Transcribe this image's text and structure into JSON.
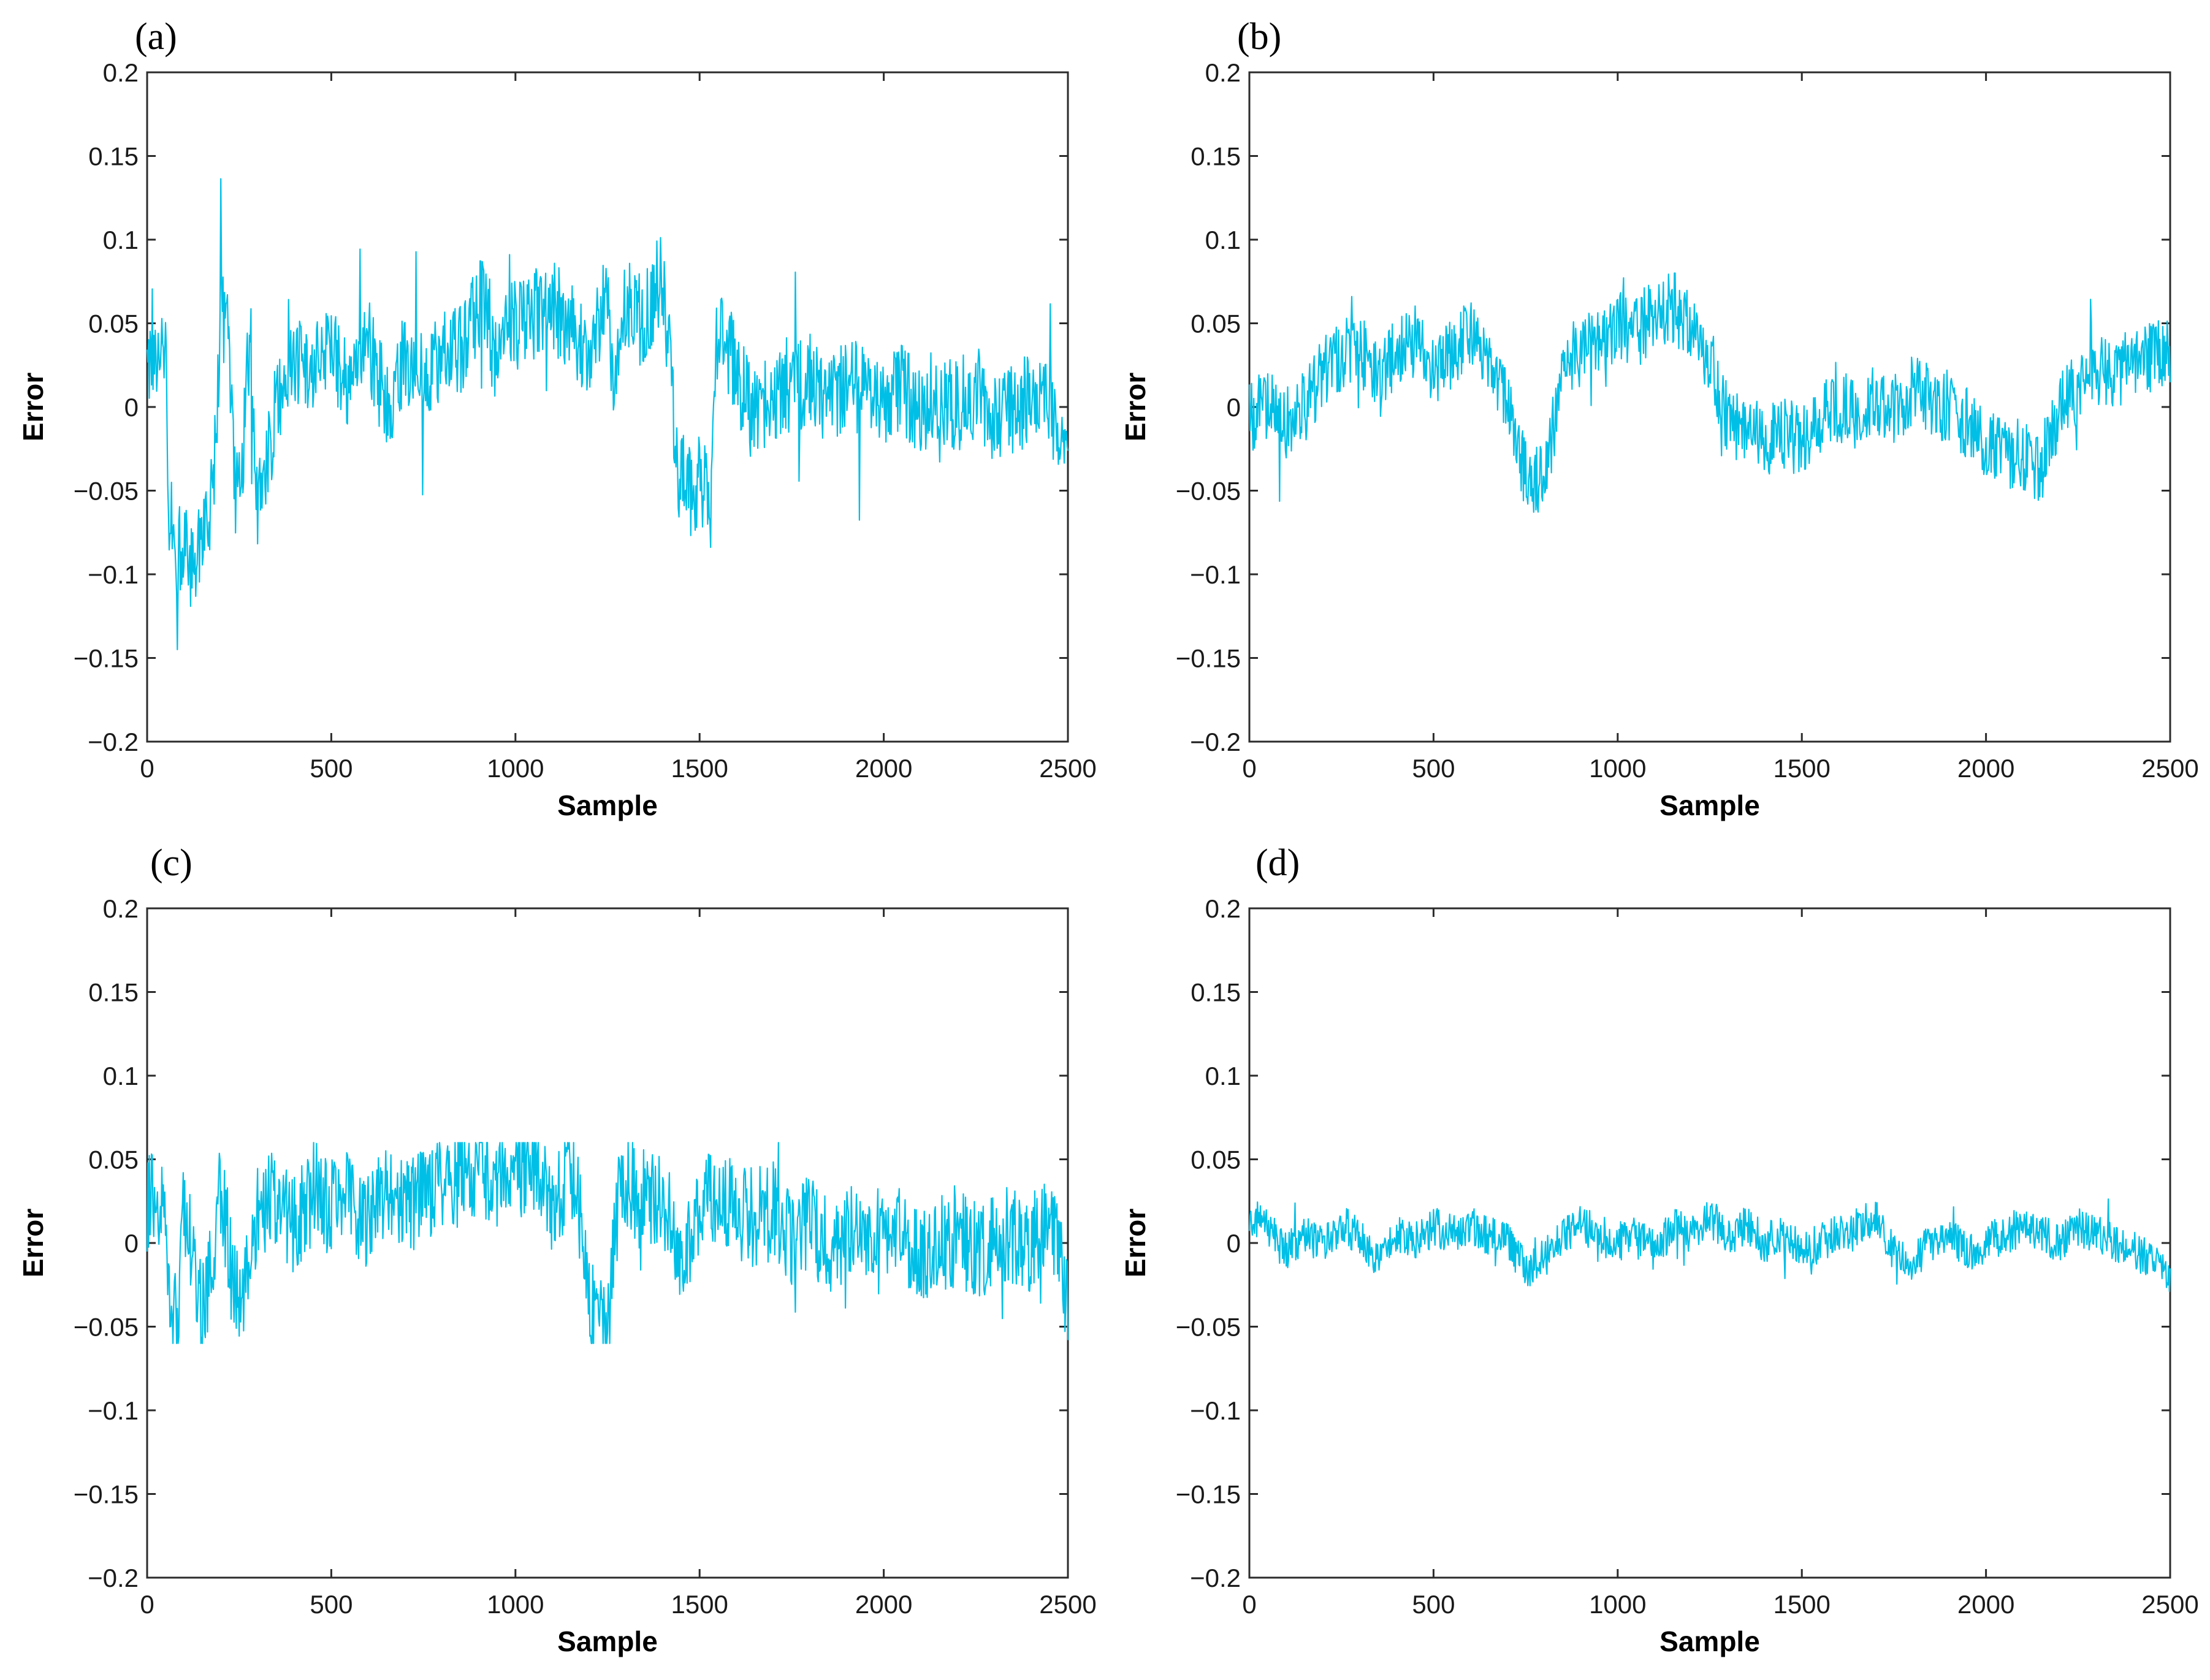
{
  "chart_data": [
    {
      "panel_label": "(a)",
      "type": "line",
      "xlabel": "Sample",
      "ylabel": "Error",
      "xlim": [
        0,
        2500
      ],
      "ylim": [
        -0.2,
        0.2
      ],
      "xticks": [
        0,
        500,
        1000,
        1500,
        2000,
        2500
      ],
      "xtick_labels": [
        "0",
        "500",
        "1000",
        "1500",
        "2000",
        "2500"
      ],
      "yticks": [
        0.2,
        0.15,
        0.1,
        0.05,
        0,
        -0.05,
        -0.1,
        -0.15,
        -0.2
      ],
      "ytick_labels": [
        "0.2",
        "0.15",
        "0.1",
        "0.05",
        "0",
        "−0.05",
        "−0.1",
        "−0.15",
        "−0.2"
      ],
      "grid": false,
      "series": [
        {
          "name": "error",
          "color": "#00BFE6",
          "x": [
            0,
            50,
            60,
            80,
            100,
            120,
            150,
            180,
            200,
            220,
            240,
            260,
            280,
            300,
            320,
            350,
            380,
            400,
            450,
            500,
            550,
            600,
            650,
            700,
            750,
            800,
            850,
            900,
            920,
            940,
            960,
            1000,
            1050,
            1100,
            1150,
            1200,
            1250,
            1260,
            1300,
            1350,
            1380,
            1400,
            1420,
            1440,
            1480,
            1500,
            1530,
            1550,
            1600,
            1650,
            1700,
            1750,
            1800,
            1850,
            1900,
            1950,
            2000,
            2050,
            2100,
            2150,
            2200,
            2250,
            2300,
            2350,
            2400,
            2450,
            2500
          ],
          "y": [
            0.018,
            0.03,
            -0.06,
            -0.09,
            -0.08,
            -0.1,
            -0.08,
            -0.05,
            0.055,
            0.045,
            -0.05,
            -0.03,
            0.05,
            -0.06,
            -0.04,
            0.0,
            0.02,
            0.03,
            0.02,
            0.035,
            0.01,
            0.04,
            0.0,
            0.03,
            0.02,
            0.03,
            0.035,
            0.06,
            0.07,
            0.03,
            0.05,
            0.05,
            0.055,
            0.06,
            0.05,
            0.03,
            0.065,
            0.01,
            0.06,
            0.05,
            0.07,
            0.08,
            0.02,
            -0.04,
            -0.05,
            -0.04,
            -0.06,
            0.055,
            0.02,
            -0.01,
            0.01,
            0.005,
            0.02,
            0.0,
            0.015,
            0.01,
            0.005,
            0.01,
            0.0,
            0.005,
            0.0,
            0.01,
            -0.005,
            0.0,
            0.005,
            0.0,
            -0.02
          ]
        }
      ]
    },
    {
      "panel_label": "(b)",
      "type": "line",
      "xlabel": "Sample",
      "ylabel": "Error",
      "xlim": [
        0,
        2500
      ],
      "ylim": [
        -0.2,
        0.2
      ],
      "xticks": [
        0,
        500,
        1000,
        1500,
        2000,
        2500
      ],
      "xtick_labels": [
        "0",
        "500",
        "1000",
        "1500",
        "2000",
        "2500"
      ],
      "yticks": [
        0.2,
        0.15,
        0.1,
        0.05,
        0,
        -0.05,
        -0.1,
        -0.15,
        -0.2
      ],
      "ytick_labels": [
        "0.2",
        "0.15",
        "0.1",
        "0.05",
        "0",
        "−0.05",
        "−0.1",
        "−0.15",
        "−0.2"
      ],
      "grid": false,
      "series": [
        {
          "name": "error",
          "color": "#00BFE6",
          "x": [
            0,
            50,
            100,
            150,
            200,
            250,
            300,
            350,
            400,
            450,
            500,
            550,
            600,
            650,
            700,
            750,
            800,
            850,
            900,
            950,
            1000,
            1050,
            1100,
            1150,
            1200,
            1250,
            1300,
            1350,
            1400,
            1450,
            1500,
            1550,
            1600,
            1650,
            1700,
            1750,
            1800,
            1850,
            1900,
            1950,
            2000,
            2050,
            2100,
            2150,
            2200,
            2250,
            2300,
            2350,
            2400,
            2450,
            2500
          ],
          "y": [
            -0.005,
            0.0,
            -0.01,
            0.0,
            0.02,
            0.03,
            0.035,
            0.02,
            0.03,
            0.04,
            0.02,
            0.03,
            0.045,
            0.03,
            0.0,
            -0.04,
            -0.045,
            0.02,
            0.035,
            0.04,
            0.05,
            0.045,
            0.055,
            0.06,
            0.05,
            0.03,
            -0.01,
            -0.015,
            -0.02,
            -0.015,
            -0.02,
            -0.01,
            0.0,
            -0.005,
            0.005,
            0.0,
            0.01,
            0.005,
            0.0,
            -0.01,
            -0.02,
            -0.025,
            -0.03,
            -0.035,
            0.0,
            0.01,
            0.02,
            0.02,
            0.025,
            0.03,
            0.03
          ]
        }
      ]
    },
    {
      "panel_label": "(c)",
      "type": "line",
      "xlabel": "Sample",
      "ylabel": "Error",
      "xlim": [
        0,
        2500
      ],
      "ylim": [
        -0.2,
        0.2
      ],
      "xticks": [
        0,
        500,
        1000,
        1500,
        2000,
        2500
      ],
      "xtick_labels": [
        "0",
        "500",
        "1000",
        "1500",
        "2000",
        "2500"
      ],
      "yticks": [
        0.2,
        0.15,
        0.1,
        0.05,
        0,
        -0.05,
        -0.1,
        -0.15,
        -0.2
      ],
      "ytick_labels": [
        "0.2",
        "0.15",
        "0.1",
        "0.05",
        "0",
        "−0.05",
        "−0.1",
        "−0.15",
        "−0.2"
      ],
      "grid": false,
      "series": [
        {
          "name": "error",
          "color": "#00BFE6",
          "x": [
            0,
            40,
            60,
            80,
            100,
            150,
            200,
            250,
            300,
            350,
            400,
            450,
            500,
            550,
            600,
            650,
            700,
            750,
            800,
            850,
            900,
            950,
            1000,
            1050,
            1100,
            1150,
            1180,
            1200,
            1250,
            1280,
            1300,
            1350,
            1400,
            1450,
            1500,
            1550,
            1600,
            1650,
            1700,
            1750,
            1800,
            1850,
            1900,
            1950,
            2000,
            2050,
            2100,
            2150,
            2200,
            2250,
            2300,
            2350,
            2400,
            2450,
            2500
          ],
          "y": [
            0.022,
            0.03,
            -0.04,
            -0.05,
            0.02,
            -0.045,
            0.03,
            -0.04,
            0.02,
            0.03,
            0.01,
            0.035,
            0.02,
            0.03,
            0.01,
            0.035,
            0.02,
            0.03,
            0.035,
            0.04,
            0.045,
            0.04,
            0.04,
            0.045,
            0.02,
            0.045,
            0.01,
            -0.04,
            -0.05,
            0.03,
            0.035,
            0.03,
            0.025,
            -0.01,
            0.025,
            0.03,
            0.02,
            0.015,
            0.02,
            0.005,
            0.01,
            0.0,
            0.005,
            0.01,
            0.0,
            0.005,
            -0.005,
            0.0,
            0.005,
            -0.005,
            0.0,
            0.005,
            0.0,
            0.01,
            -0.03
          ]
        }
      ]
    },
    {
      "panel_label": "(d)",
      "type": "line",
      "xlabel": "Sample",
      "ylabel": "Error",
      "xlim": [
        0,
        2500
      ],
      "ylim": [
        -0.2,
        0.2
      ],
      "xticks": [
        0,
        500,
        1000,
        1500,
        2000,
        2500
      ],
      "xtick_labels": [
        "0",
        "500",
        "1000",
        "1500",
        "2000",
        "2500"
      ],
      "yticks": [
        0.2,
        0.15,
        0.1,
        0.05,
        0,
        -0.05,
        -0.1,
        -0.15,
        -0.2
      ],
      "ytick_labels": [
        "0.2",
        "0.15",
        "0.1",
        "0.05",
        "0",
        "−0.05",
        "−0.1",
        "−0.15",
        "−0.2"
      ],
      "grid": false,
      "series": [
        {
          "name": "error",
          "color": "#00BFE6",
          "x": [
            0,
            50,
            100,
            150,
            200,
            250,
            300,
            350,
            400,
            450,
            500,
            550,
            600,
            650,
            700,
            750,
            800,
            850,
            900,
            950,
            1000,
            1050,
            1100,
            1150,
            1200,
            1250,
            1300,
            1350,
            1400,
            1450,
            1500,
            1550,
            1600,
            1650,
            1700,
            1750,
            1800,
            1850,
            1900,
            1950,
            2000,
            2050,
            2100,
            2150,
            2200,
            2250,
            2300,
            2350,
            2400,
            2450,
            2500
          ],
          "y": [
            0.015,
            0.01,
            -0.005,
            0.005,
            0.0,
            0.01,
            0.005,
            -0.01,
            0.005,
            0.0,
            0.01,
            0.005,
            0.01,
            0.005,
            0.0,
            -0.015,
            -0.01,
            0.005,
            0.01,
            0.005,
            0.0,
            0.005,
            -0.005,
            0.01,
            0.005,
            0.015,
            0.005,
            0.01,
            0.0,
            0.005,
            -0.005,
            0.0,
            0.005,
            0.01,
            0.015,
            -0.005,
            -0.01,
            0.0,
            0.005,
            -0.005,
            0.0,
            0.005,
            0.01,
            0.005,
            0.0,
            0.01,
            0.005,
            0.0,
            -0.005,
            -0.01,
            -0.02
          ]
        }
      ]
    }
  ]
}
